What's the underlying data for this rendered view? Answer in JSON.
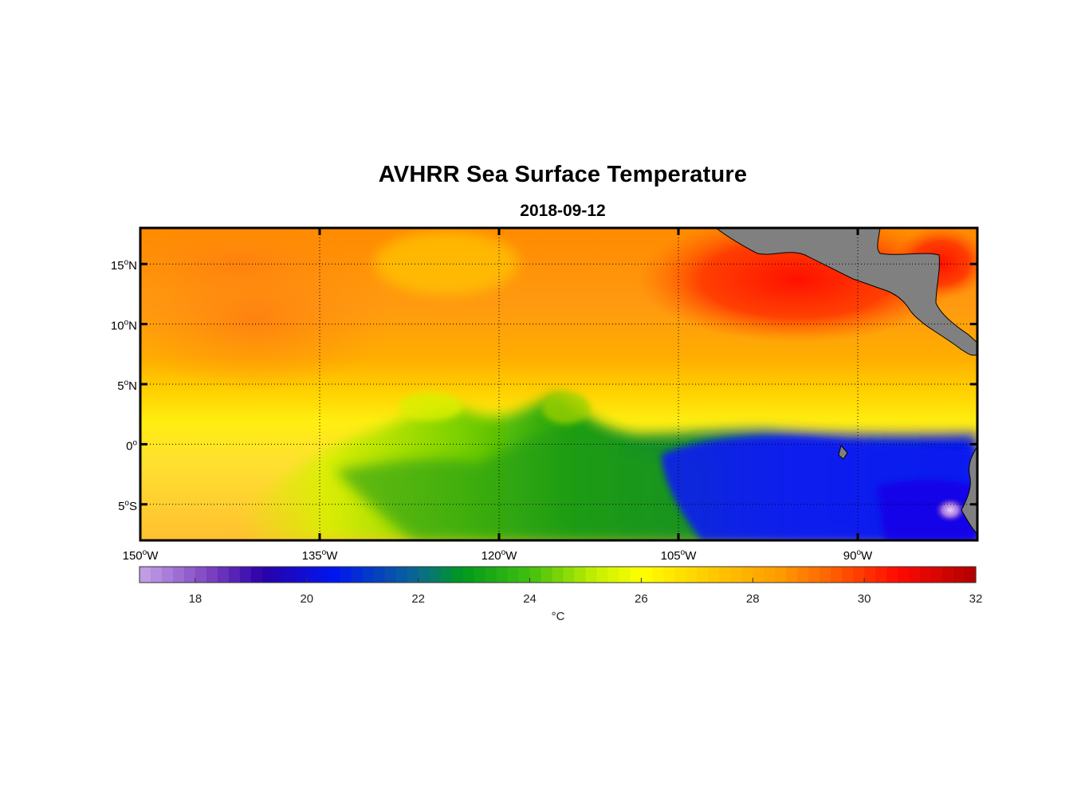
{
  "title": "AVHRR Sea Surface Temperature",
  "date": "2018-09-12",
  "map": {
    "lon_ticks": [
      {
        "lon": -150,
        "deg": "150",
        "hemi": "W"
      },
      {
        "lon": -135,
        "deg": "135",
        "hemi": "W"
      },
      {
        "lon": -120,
        "deg": "120",
        "hemi": "W"
      },
      {
        "lon": -105,
        "deg": "105",
        "hemi": "W"
      },
      {
        "lon": -90,
        "deg": "90",
        "hemi": "W"
      }
    ],
    "lat_ticks": [
      {
        "lat": 15,
        "deg": "15",
        "hemi": "N"
      },
      {
        "lat": 10,
        "deg": "10",
        "hemi": "N"
      },
      {
        "lat": 5,
        "deg": "5",
        "hemi": "N"
      },
      {
        "lat": 0,
        "deg": "0",
        "hemi": ""
      },
      {
        "lat": -5,
        "deg": "5",
        "hemi": "S"
      }
    ],
    "lon_range": [
      -150,
      -80
    ],
    "lat_range": [
      -8,
      18
    ],
    "grid": true,
    "land_color": "#808080"
  },
  "colorbar": {
    "range": [
      17,
      32
    ],
    "ticks": [
      "18",
      "20",
      "22",
      "24",
      "26",
      "28",
      "30",
      "32"
    ],
    "unit_label": "°C",
    "colors": [
      {
        "v": 17,
        "c": "#c6a4e8"
      },
      {
        "v": 18.3,
        "c": "#7a3fc0"
      },
      {
        "v": 19.2,
        "c": "#2a00a8"
      },
      {
        "v": 20.5,
        "c": "#0016f0"
      },
      {
        "v": 22,
        "c": "#0a6a90"
      },
      {
        "v": 22.8,
        "c": "#009a1a"
      },
      {
        "v": 24,
        "c": "#40bf10"
      },
      {
        "v": 25.2,
        "c": "#c6f000"
      },
      {
        "v": 26,
        "c": "#ffff00"
      },
      {
        "v": 27.3,
        "c": "#ffc800"
      },
      {
        "v": 28.5,
        "c": "#ff9a00"
      },
      {
        "v": 29.5,
        "c": "#ff5a00"
      },
      {
        "v": 30.6,
        "c": "#ff0a00"
      },
      {
        "v": 32,
        "c": "#b00000"
      }
    ]
  }
}
